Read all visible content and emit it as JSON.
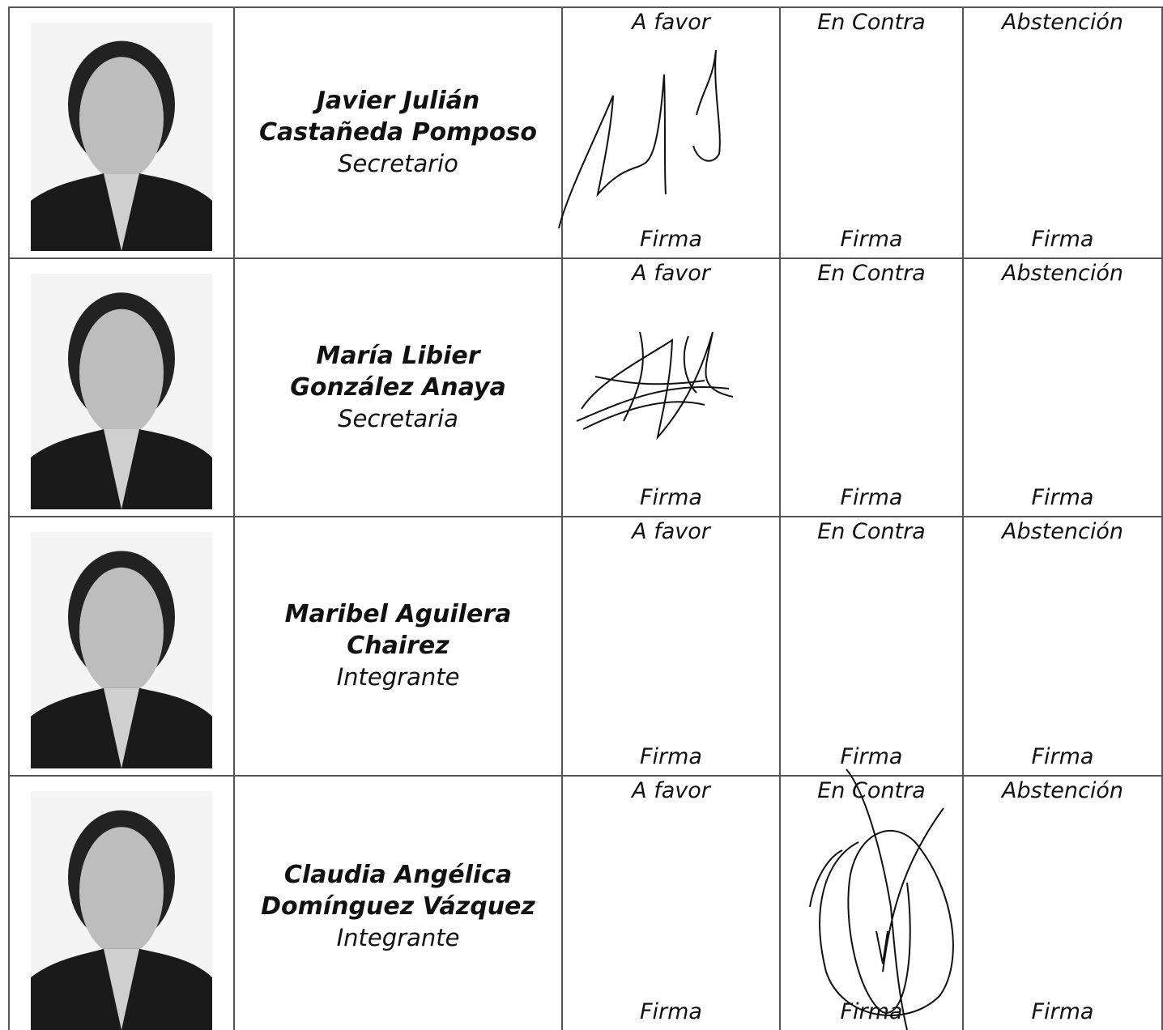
{
  "rows": [
    {
      "name_lines": [
        "Javier Julián",
        "Castañeda Pomposo"
      ],
      "role": "Secretario",
      "votes": [
        {
          "label": "A favor",
          "sign": "Firma"
        },
        {
          "label": "En Contra",
          "sign": "Firma"
        },
        {
          "label": "Abstención",
          "sign": "Firma"
        }
      ]
    },
    {
      "name_lines": [
        "María Libier",
        "González Anaya"
      ],
      "role": "Secretaria",
      "votes": [
        {
          "label": "A favor",
          "sign": "Firma"
        },
        {
          "label": "En Contra",
          "sign": "Firma"
        },
        {
          "label": "Abstención",
          "sign": "Firma"
        }
      ]
    },
    {
      "name_lines": [
        "Maribel Aguilera",
        "Chairez"
      ],
      "role": "Integrante",
      "votes": [
        {
          "label": "A favor",
          "sign": "Firma"
        },
        {
          "label": "En Contra",
          "sign": "Firma"
        },
        {
          "label": "Abstención",
          "sign": "Firma"
        }
      ]
    },
    {
      "name_lines": [
        "Claudia Angélica",
        "Domínguez Vázquez"
      ],
      "role": "Integrante",
      "votes": [
        {
          "label": "A favor",
          "sign": "Firma"
        },
        {
          "label": "En Contra",
          "sign": "Firma"
        },
        {
          "label": "Abstención",
          "sign": "Firma"
        }
      ]
    }
  ]
}
